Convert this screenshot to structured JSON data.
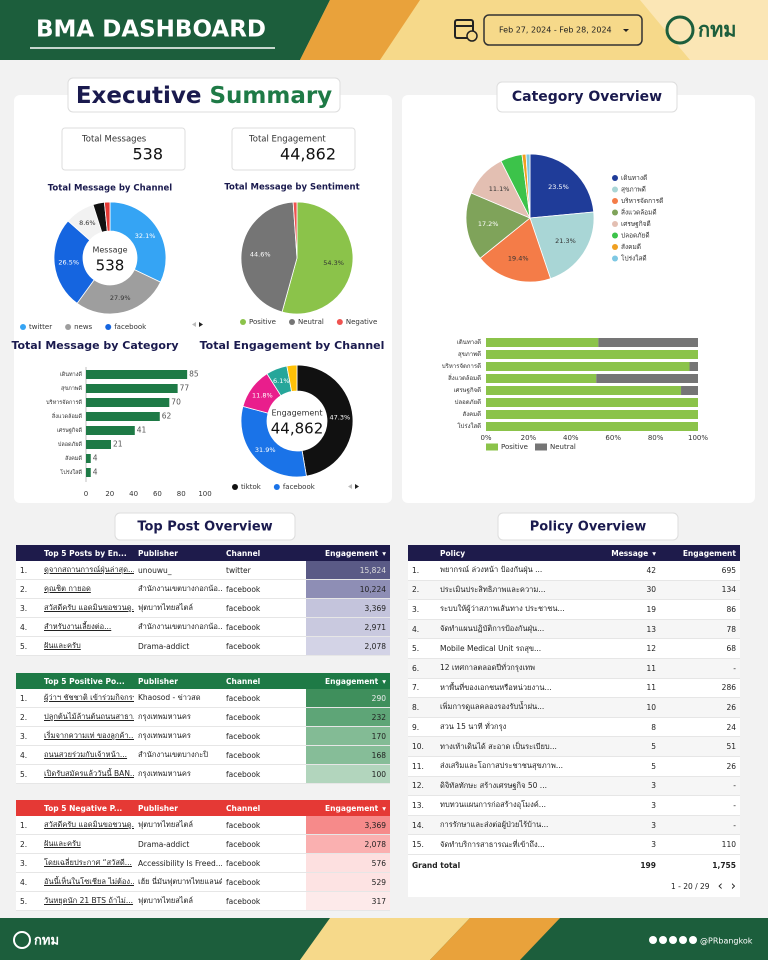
{
  "header": {
    "title": "BMA DASHBOARD",
    "date_range": "Feb 27, 2024 - Feb 28, 2024",
    "logo": "กทม"
  },
  "executive_summary": {
    "title_1": "Executive",
    "title_2": "Summary"
  },
  "kpis": [
    {
      "label": "Total Messages",
      "value": 538
    },
    {
      "label": "Total Engagement",
      "value": "44,862"
    }
  ],
  "chart_data": [
    {
      "type": "donut",
      "title": "Total Message by Channel",
      "center_label": "Message",
      "center_value": 538,
      "categories": [
        "twitter",
        "news",
        "facebook",
        null,
        null,
        null
      ],
      "values": [
        32.1,
        27.9,
        26.5,
        8.6,
        3.3,
        1.6
      ],
      "value_labels": [
        "32.1%",
        "27.9%",
        "26.5%",
        "8.6%",
        null,
        null
      ],
      "colors": [
        "#35a4f4",
        "#9e9e9e",
        "#1565e0",
        "#f2f2f2",
        "#111111",
        "#e53935"
      ],
      "legend": "bottom"
    },
    {
      "type": "pie",
      "title": "Total Message by Sentiment",
      "categories": [
        "Positive",
        "Neutral",
        "Negative"
      ],
      "values": [
        54.3,
        44.6,
        1.1
      ],
      "value_labels": [
        "54.3%",
        "44.6%",
        null
      ],
      "colors": [
        "#8bc34a",
        "#757575",
        "#ef5350"
      ],
      "legend": "bottom"
    },
    {
      "type": "hbar",
      "title": "Total Message by Category",
      "categories": [
        "เดินทางดี",
        "สุขภาพดี",
        "บริหารจัดการดี",
        "สิ่งแวดล้อมดี",
        "เศรษฐกิจดี",
        "ปลอดภัยดี",
        "สังคมดี",
        "โปร่งใสดี"
      ],
      "values": [
        85,
        77,
        70,
        62,
        41,
        21,
        4,
        4
      ],
      "color": "#1e7a46",
      "xlim": [
        0,
        100
      ],
      "xticks": [
        0,
        20,
        40,
        60,
        80,
        100
      ]
    },
    {
      "type": "donut",
      "title": "Total Engagement by Channel",
      "center_label": "Engagement",
      "center_value": "44,862",
      "categories": [
        "tiktok",
        "facebook",
        null,
        null,
        null
      ],
      "values": [
        47.3,
        31.9,
        11.8,
        6.1,
        2.9
      ],
      "value_labels": [
        "47.3%",
        "31.9%",
        "11.8%",
        "6.1%",
        null
      ],
      "colors": [
        "#111111",
        "#1a73e8",
        "#e91e8c",
        "#26a69a",
        "#ffc107"
      ],
      "legend": "bottom"
    },
    {
      "type": "pie",
      "title": "Category Overview",
      "categories": [
        "เดินทางดี",
        "สุขภาพดี",
        "บริหารจัดการดี",
        "สิ่งแวดล้อมดี",
        "เศรษฐกิจดี",
        "ปลอดภัยดี",
        "สังคมดี",
        "โปร่งใสดี"
      ],
      "values": [
        23.5,
        21.3,
        19.4,
        17.2,
        11.1,
        5.5,
        1.0,
        1.0
      ],
      "value_labels": [
        "23.5%",
        "21.3%",
        "19.4%",
        "17.2%",
        "11.1%",
        null,
        null,
        null
      ],
      "colors": [
        "#1f3c99",
        "#a9d6d6",
        "#f47c48",
        "#7fa35a",
        "#e3bfb2",
        "#3cc34a",
        "#f0a020",
        "#7ec8e3"
      ],
      "legend": "right"
    },
    {
      "type": "stacked_hbar",
      "categories": [
        "เดินทางดี",
        "สุขภาพดี",
        "บริหารจัดการดี",
        "สิ่งแวดล้อมดี",
        "เศรษฐกิจดี",
        "ปลอดภัยดี",
        "สังคมดี",
        "โปร่งใสดี"
      ],
      "series": [
        {
          "name": "Positive",
          "color": "#8bc34a",
          "values": [
            53,
            100,
            96,
            52,
            92,
            100,
            100,
            100
          ]
        },
        {
          "name": "Neutral",
          "color": "#757575",
          "values": [
            47,
            0,
            4,
            48,
            8,
            0,
            0,
            0
          ]
        }
      ],
      "xlim": [
        0,
        100
      ],
      "xticks": [
        {
          "value": 0,
          "label": "0%"
        },
        {
          "value": 20,
          "label": "20%"
        },
        {
          "value": 40,
          "label": "40%"
        },
        {
          "value": 60,
          "label": "60%"
        },
        {
          "value": 80,
          "label": "80%"
        },
        {
          "value": 100,
          "label": "100%"
        }
      ],
      "legend": "bottom"
    }
  ],
  "top_post_overview": {
    "title": "Top Post Overview",
    "tables": [
      {
        "columns": [
          "Top 5 Posts by En...",
          "Publisher",
          "Channel",
          "Engagement"
        ],
        "rows": [
          [
            "1.",
            "ดูจากสถานการณ์ฝุ่นล่าสุด...",
            "unouwu_",
            "twitter",
            "15,824"
          ],
          [
            "2.",
            "คุณชิต กายอด",
            "สำนักงานเขตบางกอกน้อ...",
            "facebook",
            "10,224"
          ],
          [
            "3.",
            "สวัสดีครับ แอดมินขอชวนดู...",
            "ฟุตบาทไทยสไตล์",
            "facebook",
            "3,369"
          ],
          [
            "4.",
            "สำหรับงานเลี้ยงต่อ...",
            "สำนักงานเขตบางกอกน้อ...",
            "facebook",
            "2,971"
          ],
          [
            "5.",
            "ฝันและครับ",
            "Drama-addict",
            "facebook",
            "2,078"
          ]
        ]
      },
      {
        "columns": [
          "Top 5 Positive Po...",
          "Publisher",
          "Channel",
          "Engagement"
        ],
        "rows": [
          [
            "1.",
            "ผู้ว่าฯ ชัชชาติ เข้าร่วมกิจกรรม...",
            "Khaosod - ข่าวสด",
            "facebook",
            290
          ],
          [
            "2.",
            "ปลูกต้นไม้ล้านต้นถนนสาธา...",
            "กรุงเทพมหานคร",
            "facebook",
            232
          ],
          [
            "3.",
            "เริ่มจากความเท่ ของลูกค้า...",
            "กรุงเทพมหานคร",
            "facebook",
            170
          ],
          [
            "4.",
            "ถนนสวยร่วมกับเจ้าหน้า...",
            "สำนักงานเขตบางกะปิ",
            "facebook",
            168
          ],
          [
            "5.",
            "เปิดรับสมัครแล้ววันนี้ BAN...",
            "กรุงเทพมหานคร",
            "facebook",
            100
          ]
        ]
      },
      {
        "columns": [
          "Top 5 Negative P...",
          "Publisher",
          "Channel",
          "Engagement"
        ],
        "rows": [
          [
            "1.",
            "สวัสดีครับ แอดมินขอชวนดู...",
            "ฟุตบาทไทยสไตล์",
            "facebook",
            "3,369"
          ],
          [
            "2.",
            "ฝันและครับ",
            "Drama-addict",
            "facebook",
            "2,078"
          ],
          [
            "3.",
            "โดยเฉลี่ยประกาศ “สวัสดี...",
            "Accessibility Is Freed...",
            "facebook",
            576
          ],
          [
            "4.",
            "อันนี้เห็นในโซเชียล ไม่ต้อง...",
            "เฮ้ย นี่มันฟุตบาทไทยแลนด์",
            "facebook",
            529
          ],
          [
            "5.",
            "วันหยุดนัก 21 BTS ถ้าไม่...",
            "ฟุตบาทไทยสไตล์",
            "facebook",
            317
          ]
        ]
      }
    ]
  },
  "policy_overview": {
    "title": "Policy Overview",
    "table": {
      "columns": [
        "Policy",
        "Message",
        "Engagement"
      ],
      "rows": [
        [
          "1.",
          "พยากรณ์ ล่วงหน้า ป้องกันฝุ่น ...",
          42,
          695
        ],
        [
          "2.",
          "ประเมินประสิทธิภาพและความ...",
          30,
          134
        ],
        [
          "3.",
          "ระบบให้ผู้ว่าสภาพเส้นทาง ประชาชน...",
          19,
          86
        ],
        [
          "4.",
          "จัดทำแผนปฏิบัติการป้องกันฝุ่น...",
          13,
          78
        ],
        [
          "5.",
          "Mobile Medical Unit รถสุข...",
          12,
          68
        ],
        [
          "6.",
          "12 เทศกาลตลอดปีทั่วกรุงเทพ",
          11,
          "-"
        ],
        [
          "7.",
          "หาพื้นที่ของเอกชนหรือหน่วยงาน...",
          11,
          286
        ],
        [
          "8.",
          "เพิ่มการดูแลคลองรองรับน้ำฝน...",
          10,
          26
        ],
        [
          "9.",
          "สวน 15 นาที ทั่วกรุง",
          8,
          24
        ],
        [
          "10.",
          "ทางเท้าเดินได้ สะอาด เป็นระเบียบ...",
          5,
          51
        ],
        [
          "11.",
          "ส่งเสริมและโอกาสประชาชนสุขภาพ...",
          5,
          26
        ],
        [
          "12.",
          "ดิจิทัลทักษะ สร้างเศรษฐกิจ 50 ...",
          3,
          "-"
        ],
        [
          "13.",
          "ทบทวนแผนการก่อสร้างอุโมงค์...",
          3,
          "-"
        ],
        [
          "14.",
          "การรักษาและส่งต่อผู้ป่วยไร้บ้าน...",
          3,
          "-"
        ],
        [
          "15.",
          "จัดทำบริการสาธารณะที่เข้าถึง...",
          3,
          110
        ]
      ],
      "grand_total": {
        "label": "Grand total",
        "message": 199,
        "engagement": "1,755"
      },
      "pager": "1 - 20 / 29"
    }
  },
  "footer": {
    "logo": "กทม",
    "handle": "@PRbangkok"
  }
}
